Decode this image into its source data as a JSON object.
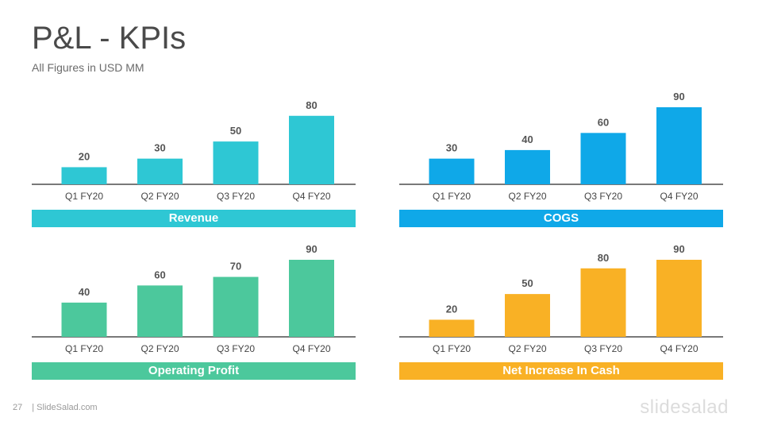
{
  "slide": {
    "title": "P&L - KPIs",
    "subtitle": "All Figures in USD MM",
    "page_number": "27",
    "footer_brand": "| SlideSalad.com",
    "watermark": "slidesalad"
  },
  "colors": {
    "revenue": "#2ec7d4",
    "cogs": "#0fa8e8",
    "operating_profit": "#4cc89c",
    "net_increase_in_cash": "#f9b125",
    "axis": "#4d4d4d",
    "label_text": "#555555"
  },
  "chart_data": [
    {
      "type": "bar",
      "title": "Revenue",
      "categories": [
        "Q1 FY20",
        "Q2 FY20",
        "Q3 FY20",
        "Q4 FY20"
      ],
      "values": [
        20,
        30,
        50,
        80
      ],
      "color": "#2ec7d4",
      "ylim": [
        0,
        90
      ]
    },
    {
      "type": "bar",
      "title": "COGS",
      "categories": [
        "Q1 FY20",
        "Q2 FY20",
        "Q3 FY20",
        "Q4 FY20"
      ],
      "values": [
        30,
        40,
        60,
        90
      ],
      "color": "#0fa8e8",
      "ylim": [
        0,
        90
      ]
    },
    {
      "type": "bar",
      "title": "Operating Profit",
      "categories": [
        "Q1 FY20",
        "Q2 FY20",
        "Q3 FY20",
        "Q4 FY20"
      ],
      "values": [
        40,
        60,
        70,
        90
      ],
      "color": "#4cc89c",
      "ylim": [
        0,
        90
      ]
    },
    {
      "type": "bar",
      "title": "Net Increase In Cash",
      "categories": [
        "Q1 FY20",
        "Q2 FY20",
        "Q3 FY20",
        "Q4 FY20"
      ],
      "values": [
        20,
        50,
        80,
        90
      ],
      "color": "#f9b125",
      "ylim": [
        0,
        90
      ]
    }
  ]
}
